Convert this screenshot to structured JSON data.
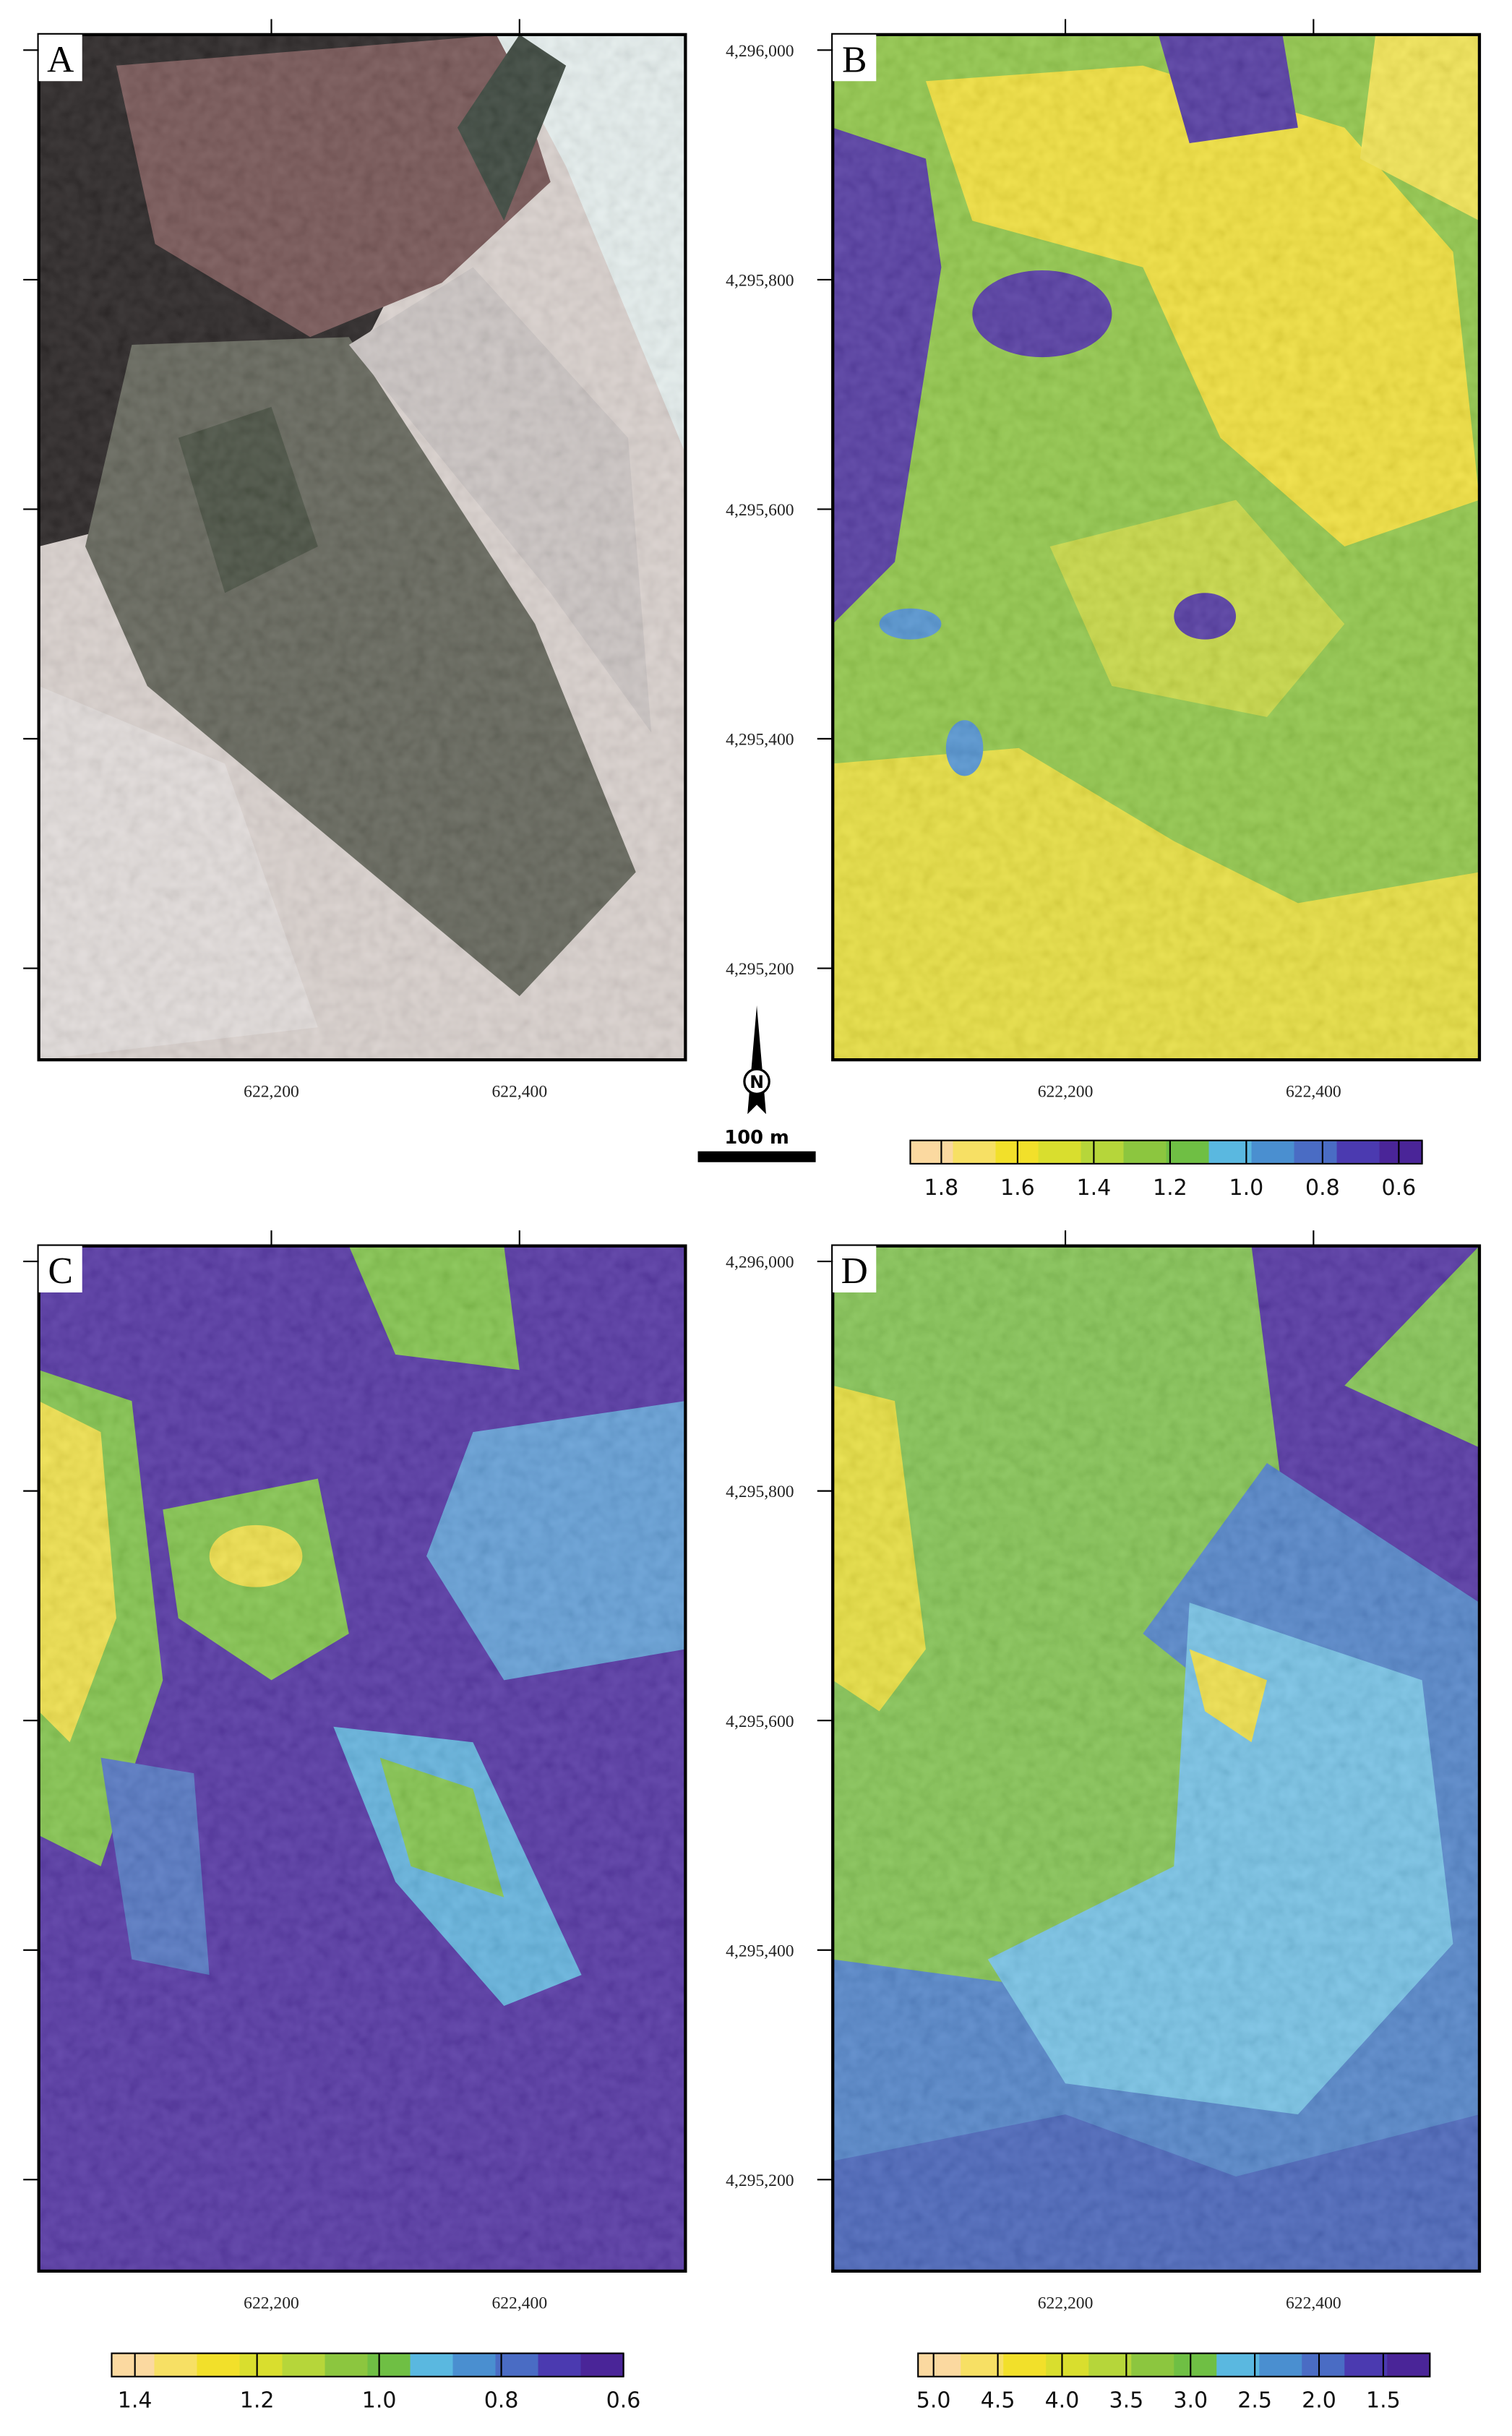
{
  "panels": [
    {
      "label": "A"
    },
    {
      "label": "B",
      "colorbar_ticks": [
        1.8,
        1.6,
        1.4,
        1.2,
        {
          "value": 1,
          "label": "1.0"
        },
        0.8,
        0.6
      ]
    },
    {
      "label": "C",
      "colorbar_ticks": [
        1.4,
        1.2,
        {
          "value": 1,
          "label": "1.0"
        },
        0.8,
        0.6
      ]
    },
    {
      "label": "D",
      "colorbar_ticks": [
        {
          "value": 5,
          "label": "5.0"
        },
        4.5,
        {
          "value": 4,
          "label": "4.0"
        },
        3.5,
        {
          "value": 3,
          "label": "3.0"
        },
        2.5,
        {
          "value": 2,
          "label": "2.0"
        },
        1.5
      ]
    }
  ],
  "x_ticks": [
    {
      "value": 622200,
      "label": "622,200"
    },
    {
      "value": 622400,
      "label": "622,400"
    }
  ],
  "y_ticks": [
    {
      "value": 4296000,
      "label": "4,296,000"
    },
    {
      "value": 4295800,
      "label": "4,295,800"
    },
    {
      "value": 4295600,
      "label": "4,295,600"
    },
    {
      "value": 4295400,
      "label": "4,295,400"
    },
    {
      "value": 4295200,
      "label": "4,295,200"
    }
  ],
  "north_label": "N",
  "scale_bar": "100 m",
  "palette": [
    "#fbd9a0",
    "#f7e064",
    "#f2e02a",
    "#d9de2e",
    "#b6d63a",
    "#8cc63f",
    "#6fbf44",
    "#5ab8e0",
    "#4a8fd0",
    "#4a6cc4",
    "#4b3ab0",
    "#4a2598"
  ]
}
